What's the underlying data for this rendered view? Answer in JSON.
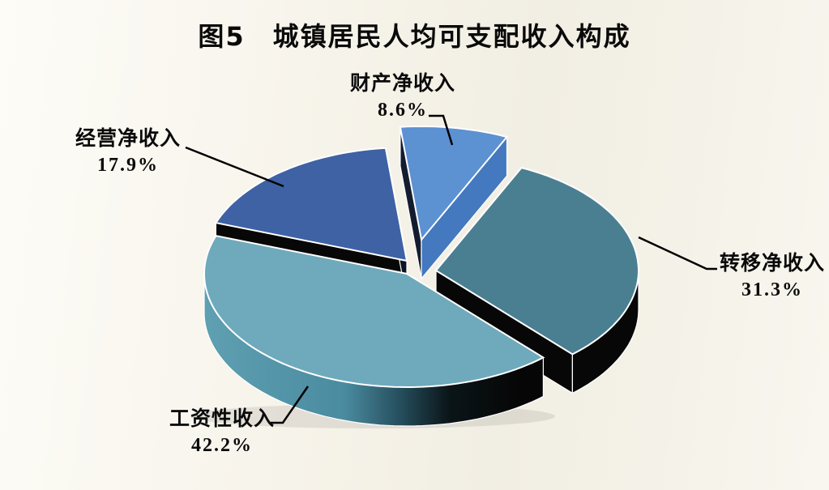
{
  "title": "图5　城镇居民人均可支配收入构成",
  "background_color": "#f6f3ea",
  "line_color": "#000000",
  "chart_data": {
    "type": "pie",
    "title": "图5　城镇居民人均可支配收入构成",
    "unit": "percent",
    "style": "3d-exploded",
    "legend_position": "none",
    "label_style": "callout",
    "slices": [
      {
        "key": "property-income",
        "label": "财产净收入",
        "value": 8.6,
        "pct_label": "8.6%",
        "color": "#5C91D2",
        "side_color": "#4478BF"
      },
      {
        "key": "transfer-income",
        "label": "转移净收入",
        "value": 31.3,
        "pct_label": "31.3%",
        "color": "#4A7F91",
        "side_color": "#070707"
      },
      {
        "key": "wage-income",
        "label": "工资性收入",
        "value": 42.2,
        "pct_label": "42.2%",
        "color": "#6FA9BC",
        "side_color": "#4E8BA0"
      },
      {
        "key": "business-income",
        "label": "经营净收入",
        "value": 17.9,
        "pct_label": "17.9%",
        "color": "#3E62A4",
        "side_color": "#070707"
      }
    ]
  }
}
